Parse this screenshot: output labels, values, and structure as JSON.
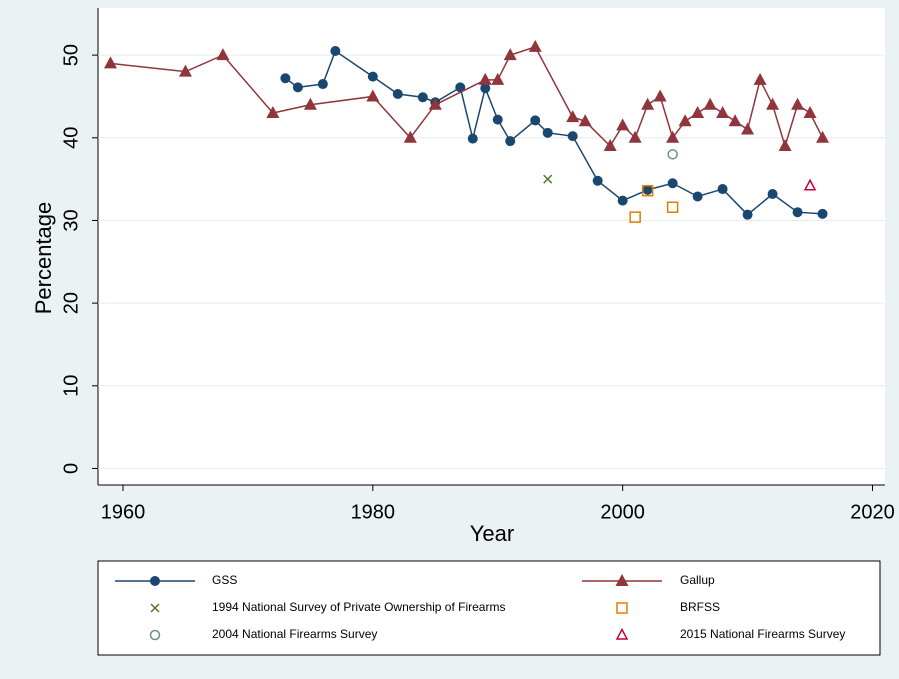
{
  "chart_data": {
    "type": "line",
    "x_label": "Year",
    "y_label": "Percentage",
    "xlim": [
      1958,
      2021
    ],
    "ylim": [
      -2,
      55.7
    ],
    "xticks": [
      1960,
      1980,
      2000,
      2020
    ],
    "yticks": [
      0,
      10,
      20,
      30,
      40,
      50
    ],
    "grid": true,
    "series": [
      {
        "name": "GSS",
        "color": "#1a476f",
        "marker": "circle",
        "connect": true,
        "x": [
          1973,
          1974,
          1976,
          1977,
          1980,
          1982,
          1984,
          1985,
          1987,
          1988,
          1989,
          1990,
          1991,
          1993,
          1994,
          1996,
          1998,
          2000,
          2002,
          2004,
          2006,
          2008,
          2010,
          2012,
          2014,
          2016
        ],
        "values": [
          47.2,
          46.1,
          46.5,
          50.5,
          47.4,
          45.3,
          44.9,
          44.3,
          46.1,
          39.9,
          46.0,
          42.2,
          39.6,
          42.1,
          40.6,
          40.2,
          34.8,
          32.4,
          33.7,
          34.5,
          32.9,
          33.8,
          30.7,
          33.2,
          31.0,
          30.8
        ]
      },
      {
        "name": "Gallup",
        "color": "#90353b",
        "marker": "triangle",
        "connect": true,
        "x": [
          1959,
          1965,
          1968,
          1972,
          1975,
          1980,
          1983,
          1985,
          1989,
          1990,
          1991,
          1993,
          1996,
          1997,
          1999,
          2000,
          2001,
          2002,
          2003,
          2004,
          2005,
          2006,
          2007,
          2008,
          2009,
          2010,
          2011,
          2012,
          2013,
          2014,
          2015,
          2016
        ],
        "values": [
          49,
          48,
          50,
          43,
          44,
          45,
          40,
          44,
          47,
          47,
          50,
          51,
          42.5,
          42,
          39,
          41.5,
          40,
          44,
          45,
          40,
          42,
          43,
          44,
          43,
          42,
          41,
          47,
          44,
          39,
          44,
          43,
          40
        ]
      },
      {
        "name": "1994 National Survey of Private Ownership of Firearms",
        "color": "#55752f",
        "marker": "x",
        "connect": false,
        "x": [
          1994
        ],
        "values": [
          35
        ]
      },
      {
        "name": "BRFSS",
        "color": "#e37e00",
        "marker": "square-hollow",
        "connect": false,
        "x": [
          2001,
          2002,
          2004
        ],
        "values": [
          30.4,
          33.6,
          31.6
        ]
      },
      {
        "name": "2004 National Firearms Survey",
        "color": "#6e8e84",
        "marker": "circle-hollow",
        "connect": false,
        "x": [
          2004
        ],
        "values": [
          38
        ]
      },
      {
        "name": "2015 National Firearms Survey",
        "color": "#c10534",
        "marker": "triangle-hollow",
        "connect": false,
        "x": [
          2015
        ],
        "values": [
          34.2
        ]
      }
    ]
  }
}
